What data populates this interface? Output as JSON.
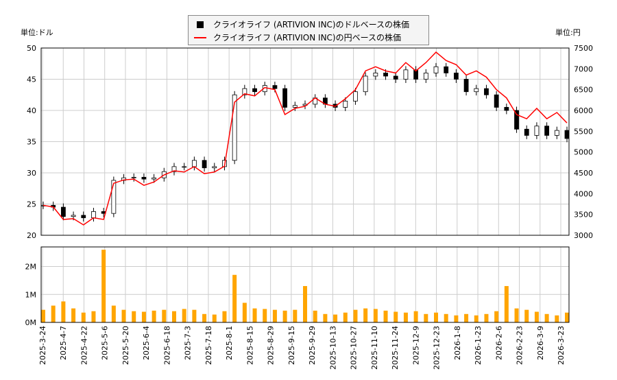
{
  "units": {
    "left": "単位:ドル",
    "right": "単位:円"
  },
  "legend": {
    "usd": "クライオライフ (ARTIVION INC)のドルベースの株価",
    "jpy": "クライオライフ (ARTIVION INC)の円ベースの株価"
  },
  "colors": {
    "usd": "#000000",
    "jpy": "#ff0000",
    "volume": "#ffa500"
  },
  "chart_data": [
    {
      "type": "line",
      "title": "",
      "ylabel": "単位:ドル",
      "y2label": "単位:円",
      "ylim": [
        20,
        50
      ],
      "y2lim": [
        3000,
        7500
      ],
      "yticks": [
        20,
        25,
        30,
        35,
        40,
        45,
        50
      ],
      "y2ticks": [
        3000,
        3500,
        4000,
        4500,
        5000,
        5500,
        6000,
        6500,
        7000,
        7500
      ],
      "grid": true,
      "x": [
        "2025-3-24",
        "2025-3-31",
        "2025-4-7",
        "2025-4-14",
        "2025-4-21",
        "2025-4-28",
        "2025-5-5",
        "2025-5-12",
        "2025-5-19",
        "2025-5-26",
        "2025-6-2",
        "2025-6-9",
        "2025-6-16",
        "2025-6-23",
        "2025-6-30",
        "2025-7-7",
        "2025-7-14",
        "2025-7-21",
        "2025-7-28",
        "2025-8-4",
        "2025-8-11",
        "2025-8-18",
        "2025-8-25",
        "2025-9-1",
        "2025-9-8",
        "2025-9-15",
        "2025-9-22",
        "2025-9-29",
        "2025-10-6",
        "2025-10-13",
        "2025-10-20",
        "2025-10-27",
        "2025-11-3",
        "2025-11-10",
        "2025-11-17",
        "2025-11-24",
        "2025-12-1",
        "2025-12-8",
        "2025-12-15",
        "2025-12-22",
        "2025-12-29",
        "2026-1-5",
        "2026-1-12",
        "2026-1-19",
        "2026-1-26",
        "2026-2-2",
        "2026-2-9",
        "2026-2-16",
        "2026-2-23",
        "2026-3-2",
        "2026-3-9",
        "2026-3-16",
        "2026-3-23"
      ],
      "series": [
        {
          "name": "クライオライフ (ARTIVION INC)のドルベースの株価",
          "axis": "left",
          "values": [
            24.8,
            24.5,
            23.0,
            23.2,
            22.8,
            23.8,
            23.5,
            28.8,
            29.2,
            29.3,
            29.0,
            29.2,
            30.2,
            31.0,
            31.0,
            32.0,
            30.8,
            31.0,
            32.0,
            42.5,
            43.5,
            43.0,
            44.0,
            43.5,
            40.5,
            40.8,
            41.0,
            42.0,
            41.0,
            40.5,
            41.5,
            43.0,
            45.5,
            46.0,
            45.5,
            45.0,
            46.5,
            45.0,
            46.0,
            47.0,
            46.0,
            45.0,
            43.0,
            43.5,
            42.5,
            40.5,
            40.0,
            37.0,
            36.0,
            37.5,
            36.0,
            36.8,
            35.5
          ]
        },
        {
          "name": "クライオライフ (ARTIVION INC)の円ベースの株価",
          "axis": "right",
          "values": [
            3720,
            3680,
            3380,
            3400,
            3250,
            3420,
            3380,
            4250,
            4330,
            4350,
            4200,
            4280,
            4450,
            4550,
            4520,
            4650,
            4480,
            4520,
            4660,
            6200,
            6400,
            6350,
            6550,
            6500,
            5900,
            6050,
            6100,
            6300,
            6150,
            6100,
            6280,
            6500,
            6950,
            7050,
            6950,
            6900,
            7150,
            6950,
            7150,
            7400,
            7200,
            7100,
            6850,
            6950,
            6800,
            6500,
            6300,
            5900,
            5800,
            6050,
            5800,
            5950,
            5700
          ]
        }
      ]
    },
    {
      "type": "bar",
      "ylim": [
        0,
        2700000
      ],
      "yticks": [
        0,
        1000000,
        2000000
      ],
      "ytick_labels": [
        "0M",
        "1M",
        "2M"
      ],
      "x_tick_labels": [
        "2025-3-24",
        "2025-4-7",
        "2025-4-22",
        "2025-5-6",
        "2025-5-20",
        "2025-6-4",
        "2025-6-18",
        "2025-7-3",
        "2025-7-18",
        "2025-8-1",
        "2025-8-15",
        "2025-8-29",
        "2025-9-15",
        "2025-9-29",
        "2025-10-13",
        "2025-10-27",
        "2025-11-10",
        "2025-11-24",
        "2025-12-9",
        "2025-12-23",
        "2026-1-8",
        "2026-1-23",
        "2026-2-6",
        "2026-2-23",
        "2026-3-9",
        "2026-3-23"
      ],
      "values": [
        450000,
        600000,
        750000,
        500000,
        350000,
        400000,
        2600000,
        600000,
        450000,
        400000,
        380000,
        420000,
        450000,
        400000,
        480000,
        450000,
        300000,
        280000,
        400000,
        1700000,
        700000,
        500000,
        480000,
        450000,
        420000,
        450000,
        1300000,
        420000,
        300000,
        280000,
        350000,
        450000,
        500000,
        480000,
        420000,
        380000,
        350000,
        400000,
        300000,
        350000,
        300000,
        250000,
        300000,
        250000,
        300000,
        400000,
        1300000,
        500000,
        450000,
        380000,
        300000,
        250000,
        350000
      ]
    }
  ]
}
